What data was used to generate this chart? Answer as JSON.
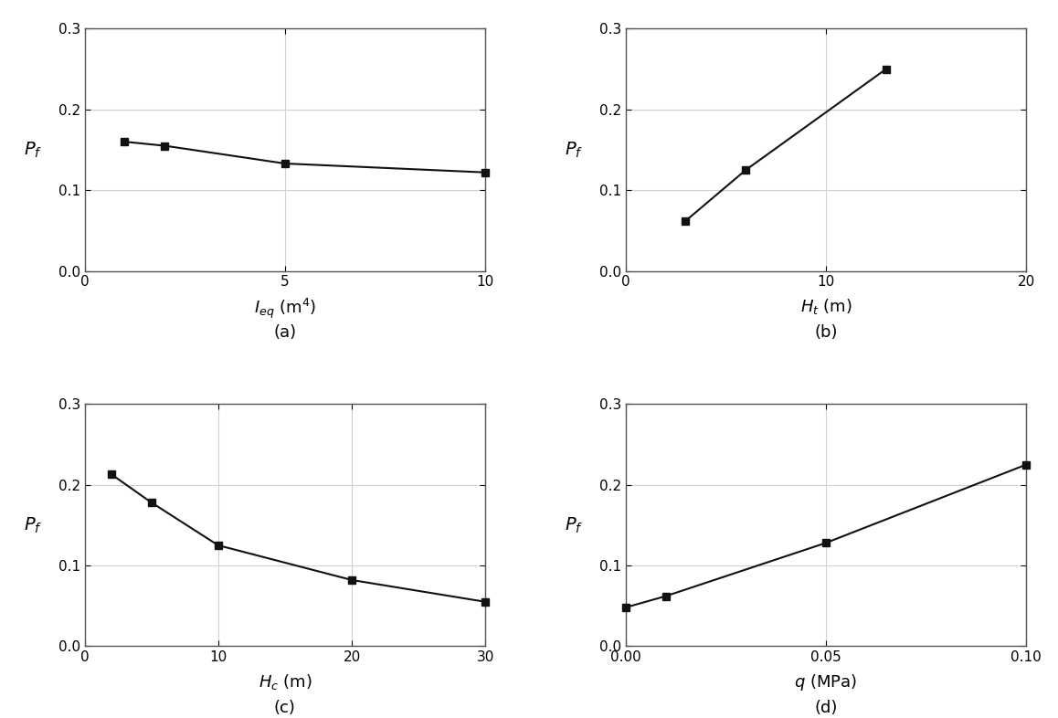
{
  "subplots": [
    {
      "label": "(a)",
      "x": [
        1,
        2,
        5,
        10
      ],
      "y": [
        0.16,
        0.155,
        0.133,
        0.122
      ],
      "xlabel": "$I_{eq}$ (m$^4$)",
      "ylabel": "$P_f$",
      "xlim": [
        0,
        10
      ],
      "ylim": [
        0.0,
        0.3
      ],
      "xticks": [
        0,
        5,
        10
      ],
      "yticks": [
        0.0,
        0.1,
        0.2,
        0.3
      ]
    },
    {
      "label": "(b)",
      "x": [
        3,
        6,
        13
      ],
      "y": [
        0.062,
        0.125,
        0.25
      ],
      "xlabel": "$H_t$ (m)",
      "ylabel": "$P_f$",
      "xlim": [
        0,
        20
      ],
      "ylim": [
        0.0,
        0.3
      ],
      "xticks": [
        0,
        10,
        20
      ],
      "yticks": [
        0.0,
        0.1,
        0.2,
        0.3
      ]
    },
    {
      "label": "(c)",
      "x": [
        2,
        5,
        10,
        20,
        30
      ],
      "y": [
        0.213,
        0.178,
        0.125,
        0.082,
        0.055
      ],
      "xlabel": "$H_c$ (m)",
      "ylabel": "$P_f$",
      "xlim": [
        0,
        30
      ],
      "ylim": [
        0.0,
        0.3
      ],
      "xticks": [
        0,
        10,
        20,
        30
      ],
      "yticks": [
        0.0,
        0.1,
        0.2,
        0.3
      ]
    },
    {
      "label": "(d)",
      "x": [
        0.0,
        0.01,
        0.05,
        0.1
      ],
      "y": [
        0.048,
        0.062,
        0.128,
        0.225
      ],
      "xlabel": "$q$ (MPa)",
      "ylabel": "$P_f$",
      "xlim": [
        0.0,
        0.1
      ],
      "ylim": [
        0.0,
        0.3
      ],
      "xticks": [
        0.0,
        0.05,
        0.1
      ],
      "yticks": [
        0.0,
        0.1,
        0.2,
        0.3
      ]
    }
  ],
  "line_color": "#111111",
  "marker": "s",
  "markersize": 6,
  "linewidth": 1.5,
  "grid_color": "#d0d0d0",
  "grid_linewidth": 0.8,
  "spine_color": "#555555",
  "tick_fontsize": 11,
  "xlabel_fontsize": 13,
  "ylabel_fontsize": 14,
  "label_fontsize": 13
}
